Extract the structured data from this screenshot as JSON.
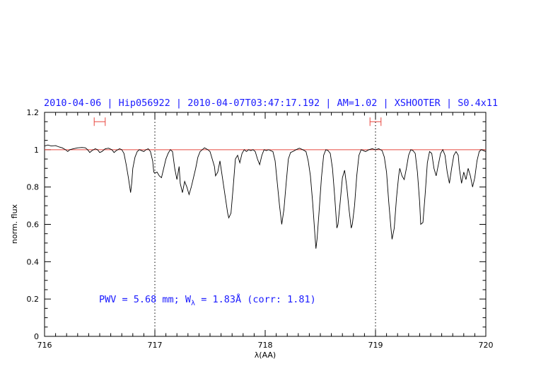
{
  "chart_data": {
    "type": "line",
    "title": "2010-04-06 | Hip056922 | 2010-04-07T03:47:17.192 | AM=1.02 | XSHOOTER | S0.4x11",
    "xlabel": "λ(AA)",
    "ylabel": "norm. flux",
    "xlim": [
      716,
      720
    ],
    "ylim": [
      0,
      1.2
    ],
    "x_ticks": [
      "716",
      "717",
      "718",
      "719",
      "720"
    ],
    "y_ticks": [
      "0",
      "0.2",
      "0.4",
      "0.6",
      "0.8",
      "1",
      "1.2"
    ],
    "grid": false,
    "reference_line": {
      "y": 1.0,
      "color": "#e8473f"
    },
    "vertical_markers": [
      717.0,
      719.0
    ],
    "interval_markers": [
      {
        "x_start": 716.45,
        "x_end": 716.55,
        "y": 1.15,
        "color": "#e8473f"
      },
      {
        "x_start": 718.95,
        "x_end": 719.05,
        "y": 1.15,
        "color": "#e8473f"
      }
    ],
    "annotation": {
      "pwv_text": "PWV  =  5.68  mm;  W",
      "subscript": "λ",
      "rest_text": "  =  1.83Å  (corr:  1.81)"
    },
    "series": [
      {
        "color": "#000000",
        "points": [
          [
            716.0,
            1.02
          ],
          [
            716.03,
            1.025
          ],
          [
            716.06,
            1.02
          ],
          [
            716.1,
            1.022
          ],
          [
            716.13,
            1.015
          ],
          [
            716.16,
            1.01
          ],
          [
            716.19,
            1.0
          ],
          [
            716.21,
            0.99
          ],
          [
            716.23,
            1.0
          ],
          [
            716.26,
            1.005
          ],
          [
            716.3,
            1.01
          ],
          [
            716.34,
            1.012
          ],
          [
            716.37,
            1.01
          ],
          [
            716.39,
            1.0
          ],
          [
            716.41,
            0.985
          ],
          [
            716.43,
            0.995
          ],
          [
            716.46,
            1.005
          ],
          [
            716.48,
            1.0
          ],
          [
            716.5,
            0.985
          ],
          [
            716.52,
            0.99
          ],
          [
            716.55,
            1.005
          ],
          [
            716.58,
            1.008
          ],
          [
            716.61,
            1.0
          ],
          [
            716.63,
            0.985
          ],
          [
            716.65,
            0.995
          ],
          [
            716.68,
            1.005
          ],
          [
            716.7,
            1.0
          ],
          [
            716.72,
            0.98
          ],
          [
            716.74,
            0.92
          ],
          [
            716.76,
            0.85
          ],
          [
            716.78,
            0.77
          ],
          [
            716.79,
            0.82
          ],
          [
            716.8,
            0.9
          ],
          [
            716.82,
            0.96
          ],
          [
            716.84,
            0.99
          ],
          [
            716.86,
            1.0
          ],
          [
            716.88,
            0.995
          ],
          [
            716.9,
            0.99
          ],
          [
            716.92,
            1.0
          ],
          [
            716.94,
            1.005
          ],
          [
            716.96,
            0.99
          ],
          [
            716.98,
            0.94
          ],
          [
            716.99,
            0.88
          ],
          [
            717.0,
            0.875
          ],
          [
            717.02,
            0.88
          ],
          [
            717.04,
            0.86
          ],
          [
            717.06,
            0.85
          ],
          [
            717.08,
            0.9
          ],
          [
            717.1,
            0.95
          ],
          [
            717.12,
            0.98
          ],
          [
            717.14,
            1.0
          ],
          [
            717.16,
            0.99
          ],
          [
            717.18,
            0.9
          ],
          [
            717.2,
            0.84
          ],
          [
            717.22,
            0.91
          ],
          [
            717.23,
            0.82
          ],
          [
            717.25,
            0.77
          ],
          [
            717.27,
            0.83
          ],
          [
            717.29,
            0.8
          ],
          [
            717.31,
            0.76
          ],
          [
            717.33,
            0.8
          ],
          [
            717.35,
            0.85
          ],
          [
            717.37,
            0.9
          ],
          [
            717.39,
            0.96
          ],
          [
            717.41,
            0.99
          ],
          [
            717.43,
            1.0
          ],
          [
            717.45,
            1.01
          ],
          [
            717.48,
            1.0
          ],
          [
            717.5,
            0.99
          ],
          [
            717.52,
            0.95
          ],
          [
            717.54,
            0.91
          ],
          [
            717.55,
            0.86
          ],
          [
            717.57,
            0.88
          ],
          [
            717.59,
            0.94
          ],
          [
            717.6,
            0.9
          ],
          [
            717.62,
            0.82
          ],
          [
            717.64,
            0.74
          ],
          [
            717.66,
            0.66
          ],
          [
            717.67,
            0.635
          ],
          [
            717.69,
            0.66
          ],
          [
            717.71,
            0.8
          ],
          [
            717.73,
            0.95
          ],
          [
            717.75,
            0.97
          ],
          [
            717.77,
            0.93
          ],
          [
            717.79,
            0.98
          ],
          [
            717.81,
            1.0
          ],
          [
            717.83,
            0.99
          ],
          [
            717.85,
            1.0
          ],
          [
            717.87,
            0.995
          ],
          [
            717.89,
            1.0
          ],
          [
            717.91,
            0.99
          ],
          [
            717.93,
            0.95
          ],
          [
            717.95,
            0.92
          ],
          [
            717.97,
            0.97
          ],
          [
            717.99,
            1.0
          ],
          [
            718.01,
            0.995
          ],
          [
            718.03,
            1.0
          ],
          [
            718.05,
            0.995
          ],
          [
            718.07,
            0.99
          ],
          [
            718.09,
            0.94
          ],
          [
            718.11,
            0.82
          ],
          [
            718.13,
            0.7
          ],
          [
            718.15,
            0.6
          ],
          [
            718.17,
            0.68
          ],
          [
            718.19,
            0.82
          ],
          [
            718.21,
            0.95
          ],
          [
            718.23,
            0.985
          ],
          [
            718.25,
            0.99
          ],
          [
            718.28,
            1.0
          ],
          [
            718.31,
            1.008
          ],
          [
            718.34,
            1.0
          ],
          [
            718.37,
            0.99
          ],
          [
            718.39,
            0.94
          ],
          [
            718.41,
            0.86
          ],
          [
            718.43,
            0.72
          ],
          [
            718.45,
            0.55
          ],
          [
            718.46,
            0.47
          ],
          [
            718.47,
            0.52
          ],
          [
            718.49,
            0.68
          ],
          [
            718.51,
            0.85
          ],
          [
            718.53,
            0.97
          ],
          [
            718.55,
            1.0
          ],
          [
            718.57,
            0.995
          ],
          [
            718.59,
            0.98
          ],
          [
            718.61,
            0.9
          ],
          [
            718.63,
            0.75
          ],
          [
            718.65,
            0.58
          ],
          [
            718.66,
            0.6
          ],
          [
            718.68,
            0.72
          ],
          [
            718.7,
            0.85
          ],
          [
            718.72,
            0.89
          ],
          [
            718.74,
            0.8
          ],
          [
            718.76,
            0.68
          ],
          [
            718.78,
            0.58
          ],
          [
            718.79,
            0.6
          ],
          [
            718.81,
            0.7
          ],
          [
            718.83,
            0.86
          ],
          [
            718.85,
            0.97
          ],
          [
            718.87,
            1.0
          ],
          [
            718.89,
            0.995
          ],
          [
            718.91,
            0.99
          ],
          [
            718.94,
            1.0
          ],
          [
            718.97,
            1.005
          ],
          [
            719.0,
            1.0
          ],
          [
            719.03,
            1.005
          ],
          [
            719.06,
            0.995
          ],
          [
            719.08,
            0.96
          ],
          [
            719.1,
            0.88
          ],
          [
            719.12,
            0.72
          ],
          [
            719.14,
            0.58
          ],
          [
            719.15,
            0.52
          ],
          [
            719.17,
            0.58
          ],
          [
            719.19,
            0.74
          ],
          [
            719.21,
            0.86
          ],
          [
            719.22,
            0.9
          ],
          [
            719.24,
            0.86
          ],
          [
            719.26,
            0.84
          ],
          [
            719.28,
            0.9
          ],
          [
            719.3,
            0.97
          ],
          [
            719.32,
            1.0
          ],
          [
            719.34,
            0.995
          ],
          [
            719.36,
            0.98
          ],
          [
            719.38,
            0.88
          ],
          [
            719.4,
            0.72
          ],
          [
            719.41,
            0.6
          ],
          [
            719.43,
            0.61
          ],
          [
            719.45,
            0.76
          ],
          [
            719.47,
            0.93
          ],
          [
            719.49,
            0.99
          ],
          [
            719.51,
            0.98
          ],
          [
            719.53,
            0.9
          ],
          [
            719.55,
            0.86
          ],
          [
            719.57,
            0.92
          ],
          [
            719.59,
            0.98
          ],
          [
            719.61,
            1.0
          ],
          [
            719.63,
            0.97
          ],
          [
            719.65,
            0.88
          ],
          [
            719.67,
            0.82
          ],
          [
            719.69,
            0.9
          ],
          [
            719.71,
            0.97
          ],
          [
            719.73,
            0.99
          ],
          [
            719.75,
            0.97
          ],
          [
            719.76,
            0.9
          ],
          [
            719.78,
            0.82
          ],
          [
            719.8,
            0.88
          ],
          [
            719.82,
            0.84
          ],
          [
            719.84,
            0.9
          ],
          [
            719.86,
            0.86
          ],
          [
            719.88,
            0.8
          ],
          [
            719.9,
            0.85
          ],
          [
            719.92,
            0.94
          ],
          [
            719.94,
            0.99
          ],
          [
            719.96,
            1.0
          ],
          [
            719.98,
            0.995
          ],
          [
            720.0,
            0.99
          ]
        ]
      }
    ]
  }
}
